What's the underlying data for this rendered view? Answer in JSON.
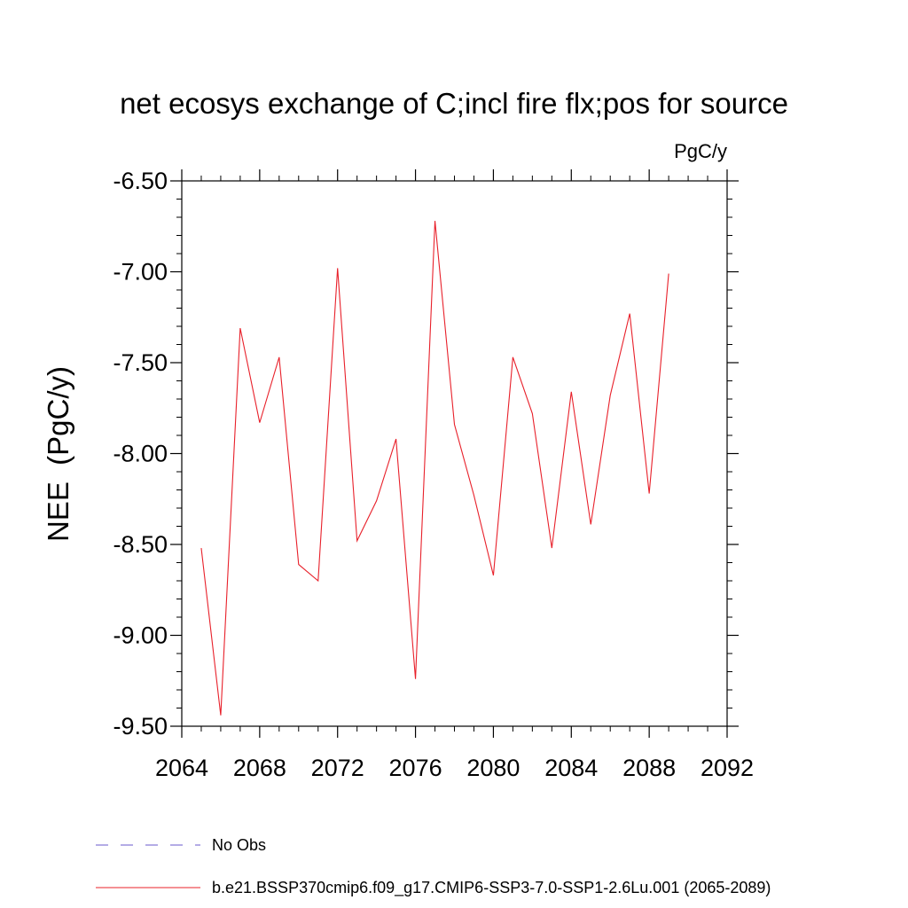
{
  "chart_data": {
    "type": "line",
    "title": "net ecosys exchange of C;incl fire flx;pos for source",
    "units": "PgC/y",
    "ylabel": "NEE  (PgC/y)",
    "xlabel": "",
    "xlim": [
      2064,
      2092
    ],
    "ylim": [
      -9.5,
      -6.5
    ],
    "xticks": [
      2064,
      2068,
      2072,
      2076,
      2080,
      2084,
      2088,
      2092
    ],
    "xtick_labels": [
      "2064",
      "2068",
      "2072",
      "2076",
      "2080",
      "2084",
      "2088",
      "2092"
    ],
    "yticks": [
      -9.5,
      -9.0,
      -8.5,
      -8.0,
      -7.5,
      -7.0,
      -6.5
    ],
    "ytick_labels": [
      "-9.50",
      "-9.00",
      "-8.50",
      "-8.00",
      "-7.50",
      "-7.00",
      "-6.50"
    ],
    "grid": false,
    "legend_position": "bottom-left",
    "series": [
      {
        "name": "No Obs",
        "color": "#6a5acd",
        "dash": "dashed",
        "x": [],
        "y": []
      },
      {
        "name": "b.e21.BSSP370cmip6.f09_g17.CMIP6-SSP3-7.0-SSP1-2.6Lu.001 (2065-2089)",
        "color": "#e8202a",
        "dash": "solid",
        "x": [
          2065,
          2066,
          2067,
          2068,
          2069,
          2070,
          2071,
          2072,
          2073,
          2074,
          2075,
          2076,
          2077,
          2078,
          2079,
          2080,
          2081,
          2082,
          2083,
          2084,
          2085,
          2086,
          2087,
          2088,
          2089
        ],
        "y": [
          -8.52,
          -9.44,
          -7.31,
          -7.83,
          -7.47,
          -8.61,
          -8.7,
          -6.98,
          -8.48,
          -8.26,
          -7.92,
          -9.24,
          -6.72,
          -7.84,
          -8.23,
          -8.67,
          -7.47,
          -7.78,
          -8.52,
          -7.66,
          -8.39,
          -7.68,
          -7.23,
          -8.22,
          -7.01
        ]
      }
    ]
  }
}
